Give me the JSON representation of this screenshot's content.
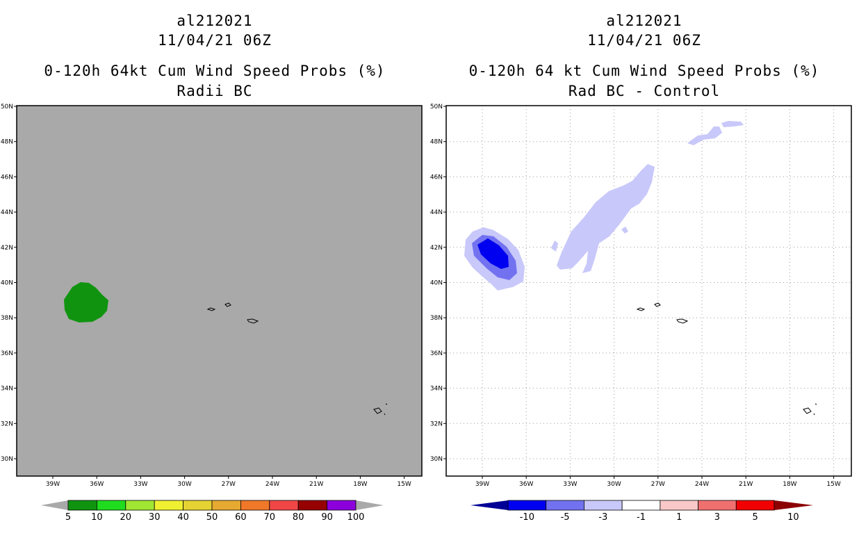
{
  "left": {
    "storm_id": "al212021",
    "datetime": "11/04/21 06Z",
    "title": "0-120h 64kt Cum Wind Speed Probs (%)",
    "subtitle": "Radii BC",
    "background_color": "#a9a9a9",
    "field_color": "#109410",
    "colorbar": {
      "colors": [
        "#109410",
        "#1fdc1f",
        "#a0e632",
        "#f0f032",
        "#e6d232",
        "#e6aa32",
        "#f07828",
        "#f04646",
        "#960000",
        "#8c00dc"
      ],
      "labels": [
        "5",
        "10",
        "20",
        "30",
        "40",
        "50",
        "60",
        "70",
        "80",
        "90",
        "100"
      ]
    }
  },
  "right": {
    "storm_id": "al212021",
    "datetime": "11/04/21 06Z",
    "title": "0-120h 64 kt Cum Wind Speed Probs (%)",
    "subtitle": "Rad BC - Control",
    "background_color": "#ffffff",
    "colorbar": {
      "colors": [
        "#000096",
        "#0000f0",
        "#7272f0",
        "#c8c8fa",
        "#ffffff",
        "#fac8c8",
        "#f07070",
        "#f00000",
        "#8c0000"
      ],
      "labels": [
        "-10",
        "-5",
        "-3",
        "-1",
        "1",
        "3",
        "5",
        "10"
      ]
    }
  },
  "axes": {
    "lat_labels": [
      "30N",
      "32N",
      "34N",
      "36N",
      "38N",
      "40N",
      "42N",
      "44N",
      "46N",
      "48N",
      "50N"
    ],
    "lon_labels": [
      "39W",
      "36W",
      "33W",
      "30W",
      "27W",
      "24W",
      "21W",
      "18W",
      "15W"
    ]
  }
}
